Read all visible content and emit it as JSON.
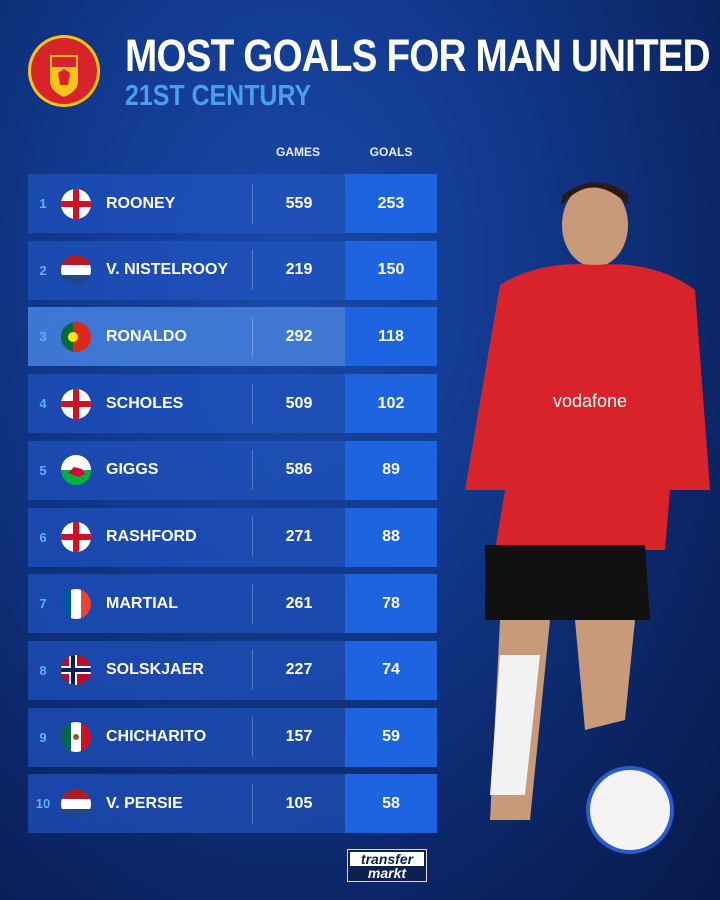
{
  "header": {
    "title": "MOST GOALS FOR MAN UNITED",
    "subtitle": "21ST CENTURY",
    "logo_text": "MANCHESTER UNITED"
  },
  "columns": {
    "games": "GAMES",
    "goals": "GOALS"
  },
  "rows": [
    {
      "rank": "1",
      "flag": "england",
      "name": "ROONEY",
      "games": "559",
      "goals": "253"
    },
    {
      "rank": "2",
      "flag": "netherlands",
      "name": "V. NISTELROOY",
      "games": "219",
      "goals": "150"
    },
    {
      "rank": "3",
      "flag": "portugal",
      "name": "RONALDO",
      "games": "292",
      "goals": "118",
      "highlight": true
    },
    {
      "rank": "4",
      "flag": "england",
      "name": "SCHOLES",
      "games": "509",
      "goals": "102"
    },
    {
      "rank": "5",
      "flag": "wales",
      "name": "GIGGS",
      "games": "586",
      "goals": "89"
    },
    {
      "rank": "6",
      "flag": "england",
      "name": "RASHFORD",
      "games": "271",
      "goals": "88"
    },
    {
      "rank": "7",
      "flag": "france",
      "name": "MARTIAL",
      "games": "261",
      "goals": "78"
    },
    {
      "rank": "8",
      "flag": "norway",
      "name": "SOLSKJAER",
      "games": "227",
      "goals": "74"
    },
    {
      "rank": "9",
      "flag": "mexico",
      "name": "CHICHARITO",
      "games": "157",
      "goals": "59"
    },
    {
      "rank": "10",
      "flag": "netherlands",
      "name": "V. PERSIE",
      "games": "105",
      "goals": "58"
    }
  ],
  "footer": {
    "brand_top": "transfer",
    "brand_bottom": "markt"
  },
  "colors": {
    "goals_cell": "#1e63e0",
    "subtitle": "#4a9ef0",
    "shirt": "#d9232a"
  },
  "chart_data": {
    "type": "table",
    "title": "MOST GOALS FOR MAN UNITED",
    "subtitle": "21ST CENTURY",
    "columns": [
      "",
      "",
      "GAMES",
      "GOALS"
    ],
    "categories": [
      "ROONEY",
      "V. NISTELROOY",
      "RONALDO",
      "SCHOLES",
      "GIGGS",
      "RASHFORD",
      "MARTIAL",
      "SOLSKJAER",
      "CHICHARITO",
      "V. PERSIE"
    ],
    "series": [
      {
        "name": "GAMES",
        "values": [
          559,
          219,
          292,
          509,
          586,
          271,
          261,
          227,
          157,
          105
        ]
      },
      {
        "name": "GOALS",
        "values": [
          253,
          150,
          118,
          102,
          89,
          88,
          78,
          74,
          59,
          58
        ]
      }
    ]
  }
}
